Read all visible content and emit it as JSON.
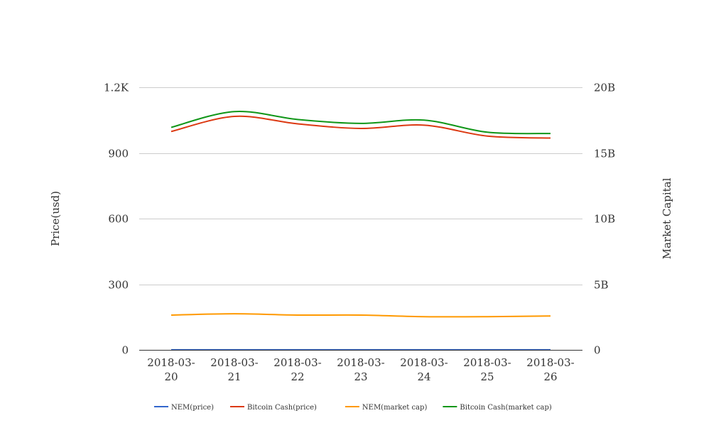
{
  "chart_data": {
    "type": "line",
    "categories": [
      "2018-03-20",
      "2018-03-21",
      "2018-03-22",
      "2018-03-23",
      "2018-03-24",
      "2018-03-25",
      "2018-03-26"
    ],
    "category_labels": [
      [
        "2018-03-",
        "20"
      ],
      [
        "2018-03-",
        "21"
      ],
      [
        "2018-03-",
        "22"
      ],
      [
        "2018-03-",
        "23"
      ],
      [
        "2018-03-",
        "24"
      ],
      [
        "2018-03-",
        "25"
      ],
      [
        "2018-03-",
        "26"
      ]
    ],
    "y_left": {
      "label": "Price(usd)",
      "ylim": [
        0,
        1200
      ],
      "ticks": [
        0,
        300,
        600,
        900,
        1200
      ],
      "tick_labels": [
        "0",
        "300",
        "600",
        "900",
        "1.2K"
      ]
    },
    "y_right": {
      "label": "Market Capital",
      "ylim": [
        0,
        20000000000
      ],
      "ticks": [
        0,
        5000000000,
        10000000000,
        15000000000,
        20000000000
      ],
      "tick_labels": [
        "0",
        "5B",
        "10B",
        "15B",
        "20B"
      ]
    },
    "grid": true,
    "legend_position": "bottom",
    "series": [
      {
        "name": "NEM(price)",
        "axis": "left",
        "color": "#3366cc",
        "values": [
          0.28,
          0.27,
          0.26,
          0.25,
          0.24,
          0.23,
          0.23
        ]
      },
      {
        "name": "Bitcoin Cash(price)",
        "axis": "left",
        "color": "#dc3912",
        "values": [
          998,
          1067,
          1033,
          1012,
          1027,
          977,
          968
        ]
      },
      {
        "name": "NEM(market cap)",
        "axis": "right",
        "color": "#ff9900",
        "values": [
          2650000000,
          2750000000,
          2650000000,
          2650000000,
          2530000000,
          2530000000,
          2580000000
        ]
      },
      {
        "name": "Bitcoin Cash(market cap)",
        "axis": "right",
        "color": "#109618",
        "values": [
          16950000000,
          18150000000,
          17550000000,
          17250000000,
          17500000000,
          16580000000,
          16480000000
        ]
      }
    ]
  }
}
